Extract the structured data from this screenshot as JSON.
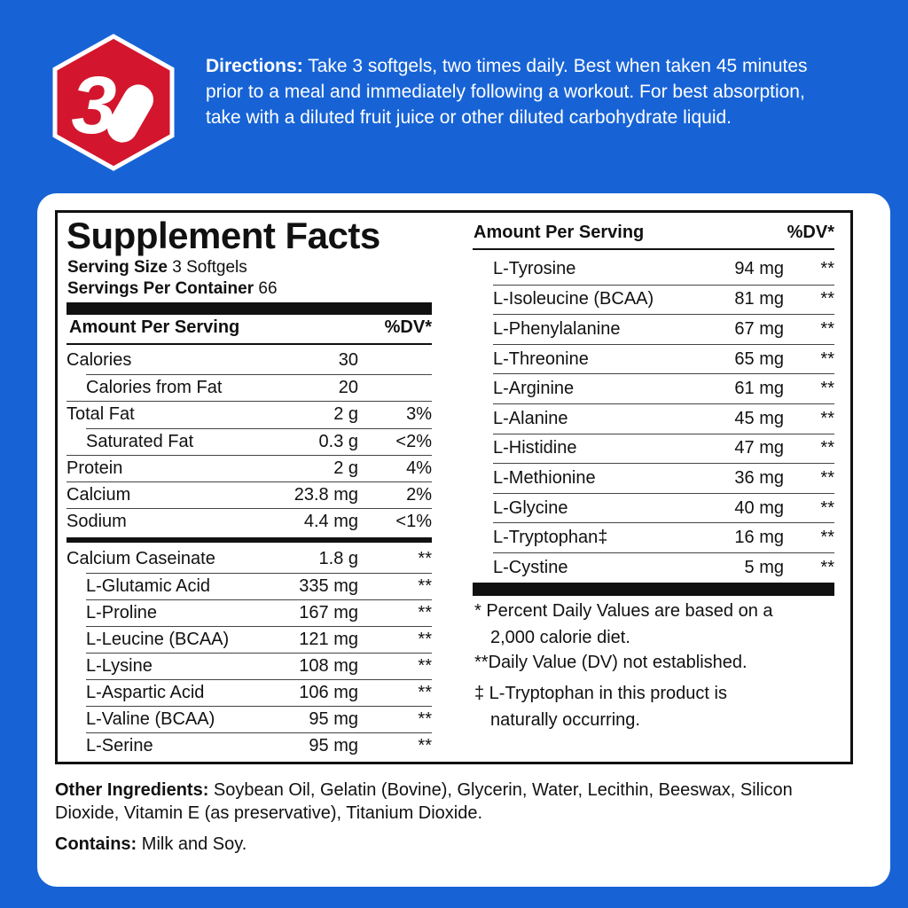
{
  "logo": {
    "text": "3"
  },
  "directions": {
    "label": "Directions:",
    "text": "Take 3 softgels, two times daily. Best when taken 45 minutes prior to a meal and immediately following a workout. For best absorption, take with a diluted fruit juice or other diluted carbohydrate liquid."
  },
  "facts": {
    "title": "Supplement Facts",
    "serving_size_label": "Serving Size",
    "serving_size": "3 Softgels",
    "servings_label": "Servings Per Container",
    "servings": "66",
    "left_header": [
      "Amount Per Serving",
      "%DV*"
    ],
    "nutrients": [
      [
        "Calories",
        "30"
      ],
      [
        "Calories from Fat",
        "20"
      ],
      [
        "Total Fat",
        "2 g",
        "3%"
      ],
      [
        "Saturated  Fat",
        "0.3 g",
        "<2%"
      ],
      [
        "Protein",
        "2 g",
        "4%"
      ],
      [
        "Calcium",
        "23.8 mg",
        "2%"
      ],
      [
        "Sodium",
        "4.4 mg",
        "<1%"
      ]
    ],
    "caseinate": [
      [
        "Calcium Caseinate",
        "1.8 g",
        "**"
      ],
      [
        "L-Glutamic Acid",
        "335 mg",
        "**"
      ],
      [
        "L-Proline",
        "167 mg",
        "**"
      ],
      [
        "L-Leucine (BCAA)",
        "121 mg",
        "**"
      ],
      [
        "L-Lysine",
        "108 mg",
        "**"
      ],
      [
        "L-Aspartic Acid",
        "106 mg",
        "**"
      ],
      [
        "L-Valine (BCAA)",
        "95 mg",
        "**"
      ],
      [
        "L-Serine",
        "95 mg",
        "**"
      ]
    ],
    "right_header": [
      "Amount Per Serving",
      "%DV*"
    ],
    "amino": [
      [
        "L-Tyrosine",
        "94 mg",
        "**"
      ],
      [
        "L-Isoleucine (BCAA)",
        "81 mg",
        "**"
      ],
      [
        "L-Phenylalanine",
        "67 mg",
        "**"
      ],
      [
        "L-Threonine",
        "65 mg",
        "**"
      ],
      [
        "L-Arginine",
        "61 mg",
        "**"
      ],
      [
        "L-Alanine",
        "45 mg",
        "**"
      ],
      [
        "L-Histidine",
        "47 mg",
        "**"
      ],
      [
        "L-Methionine",
        "36 mg",
        "**"
      ],
      [
        "L-Glycine",
        "40 mg",
        "**"
      ],
      [
        "L-Tryptophan‡",
        "16 mg",
        "**"
      ],
      [
        "L-Cystine",
        "5 mg",
        "**"
      ]
    ],
    "footnotes": [
      "* Percent Daily Values are based on a 2,000 calorie diet.",
      "**Daily Value (DV) not established.",
      "‡ L-Tryptophan in this product is naturally occurring."
    ]
  },
  "other_ingredients": {
    "label": "Other Ingredients:",
    "text": "Soybean Oil, Gelatin (Bovine), Glycerin, Water, Lecithin, Beeswax, Silicon Dioxide, Vitamin E (as preservative), Titanium Dioxide."
  },
  "contains": {
    "label": "Contains:",
    "text": "Milk and Soy."
  }
}
